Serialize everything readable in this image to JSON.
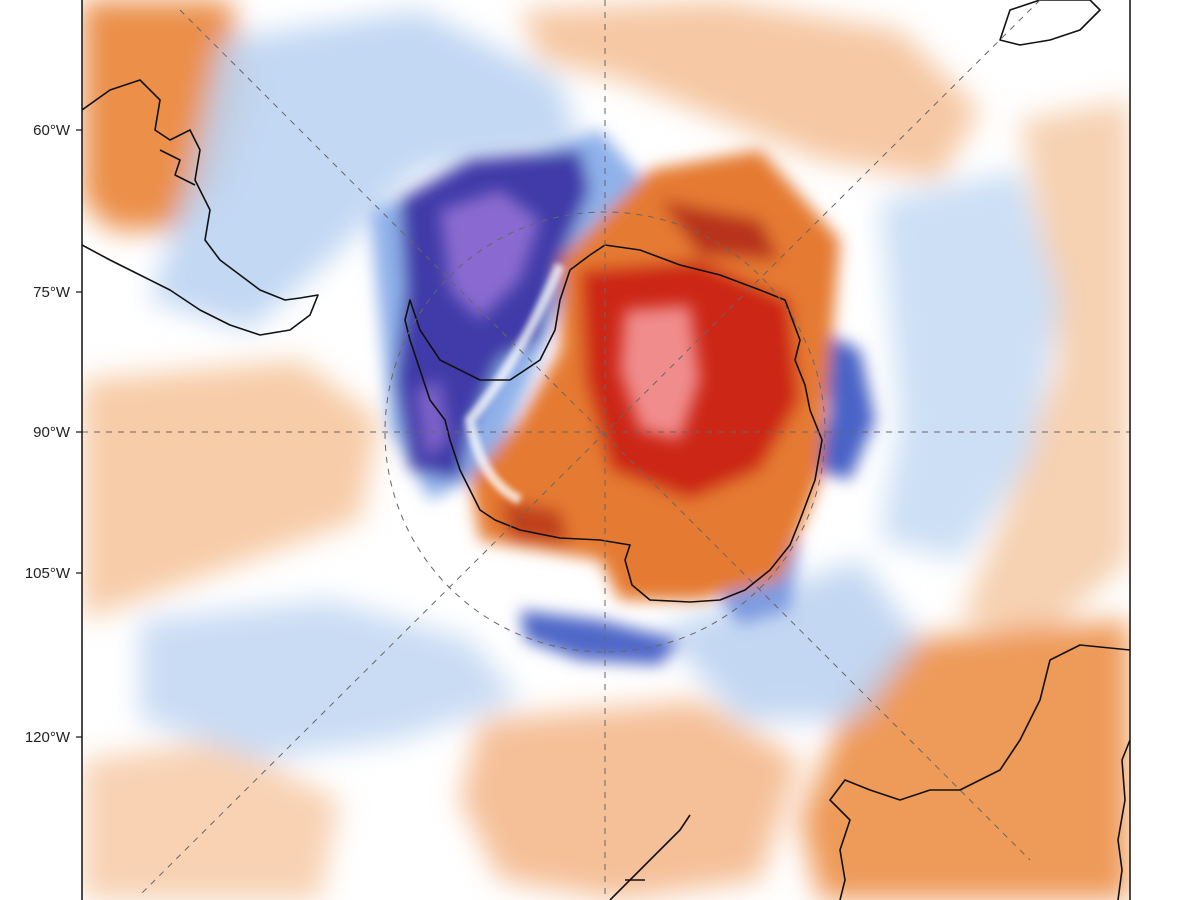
{
  "map": {
    "projection": "south-polar-stereographic",
    "anomaly_palette": {
      "deep_cold": "#3b2fa8",
      "cold_violet": "#7b5cc8",
      "cold": "#4a6fd0",
      "cool": "#a9c8f0",
      "pale_cool": "#dbe8f8",
      "neutral": "#ffffff",
      "warm": "#f7c49a",
      "mid_warm": "#e8853a",
      "hot": "#d44a12",
      "very_hot": "#c21010",
      "extreme_hot": "#f08a8a"
    },
    "coastline_color": "#111111",
    "gridline_color": "#666666"
  },
  "axis": {
    "labels": [
      "60°W",
      "75°W",
      "90°W",
      "105°W",
      "120°W"
    ]
  }
}
